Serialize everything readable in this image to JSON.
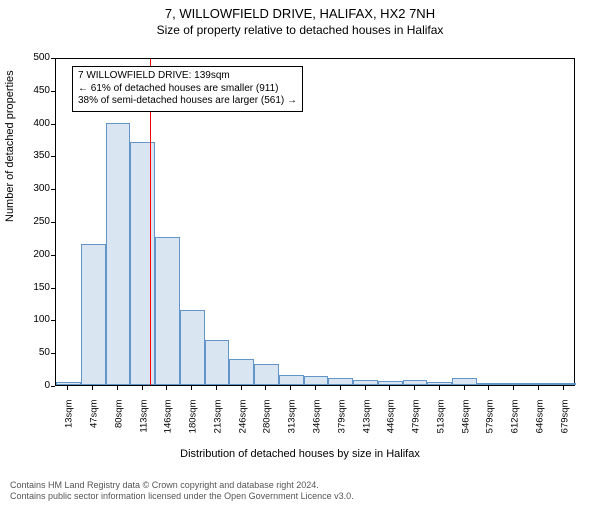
{
  "title": "7, WILLOWFIELD DRIVE, HALIFAX, HX2 7NH",
  "subtitle": "Size of property relative to detached houses in Halifax",
  "y_axis_label": "Number of detached properties",
  "x_axis_label": "Distribution of detached houses by size in Halifax",
  "chart": {
    "type": "histogram",
    "background_color": "#ffffff",
    "bar_fill": "#d9e6f2",
    "bar_stroke": "#6495c8",
    "marker_color": "#ff0000",
    "callout_border": "#000000",
    "y": {
      "min": 0,
      "max": 500,
      "ticks": [
        0,
        50,
        100,
        150,
        200,
        250,
        300,
        350,
        400,
        450,
        500
      ]
    },
    "x": {
      "labels": [
        "13sqm",
        "47sqm",
        "80sqm",
        "113sqm",
        "146sqm",
        "180sqm",
        "213sqm",
        "246sqm",
        "280sqm",
        "313sqm",
        "346sqm",
        "379sqm",
        "413sqm",
        "446sqm",
        "479sqm",
        "513sqm",
        "546sqm",
        "579sqm",
        "612sqm",
        "646sqm",
        "679sqm"
      ]
    },
    "bars": [
      5,
      215,
      400,
      370,
      225,
      115,
      68,
      40,
      32,
      15,
      13,
      10,
      8,
      6,
      7,
      4,
      10,
      3,
      2,
      2,
      2
    ],
    "marker_bin_index": 3,
    "marker_fraction_in_bin": 0.78
  },
  "callout": {
    "line1": "7 WILLOWFIELD DRIVE: 139sqm",
    "line2": "← 61% of detached houses are smaller (911)",
    "line3": "38% of semi-detached houses are larger (561) →"
  },
  "footer": {
    "line1": "Contains HM Land Registry data © Crown copyright and database right 2024.",
    "line2": "Contains public sector information licensed under the Open Government Licence v3.0."
  },
  "styling": {
    "title_fontsize": 13,
    "subtitle_fontsize": 12,
    "axis_label_fontsize": 11,
    "tick_fontsize": 10,
    "callout_fontsize": 10,
    "footer_fontsize": 9
  }
}
